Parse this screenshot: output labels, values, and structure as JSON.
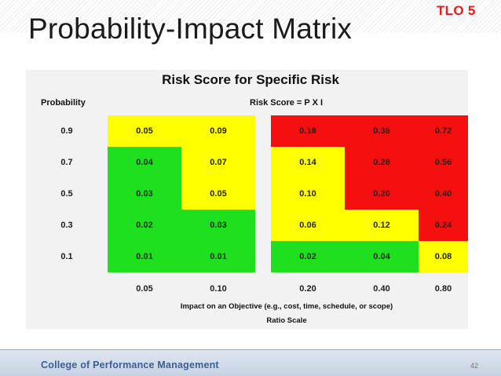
{
  "header": {
    "tlo_badge": "TLO 5",
    "title": "Probability-Impact Matrix"
  },
  "matrix": {
    "title": "Risk Score for Specific Risk",
    "probability_header": "Probability",
    "formula_header": "Risk Score = P X I",
    "rows": [
      {
        "probability": "0.9",
        "cells": [
          "0.05",
          "0.09",
          "0.18",
          "0.36",
          "0.72"
        ]
      },
      {
        "probability": "0.7",
        "cells": [
          "0.04",
          "0.07",
          "0.14",
          "0.28",
          "0.56"
        ]
      },
      {
        "probability": "0.5",
        "cells": [
          "0.03",
          "0.05",
          "0.10",
          "0.20",
          "0.40"
        ]
      },
      {
        "probability": "0.3",
        "cells": [
          "0.02",
          "0.03",
          "0.06",
          "0.12",
          "0.24"
        ]
      },
      {
        "probability": "0.1",
        "cells": [
          "0.01",
          "0.01",
          "0.02",
          "0.04",
          "0.08"
        ]
      }
    ],
    "impact_values": [
      "0.05",
      "0.10",
      "0.20",
      "0.40",
      "0.80"
    ],
    "impact_axis_label": "Impact on an Objective (e.g., cost, time, schedule, or scope)",
    "scale_label": "Ratio Scale",
    "zone_colors": {
      "low": "#1ee01e",
      "medium": "#ffff00",
      "high": "#f50f0f"
    }
  },
  "footer": {
    "organization": "College of Performance Management",
    "page_number": "42"
  }
}
